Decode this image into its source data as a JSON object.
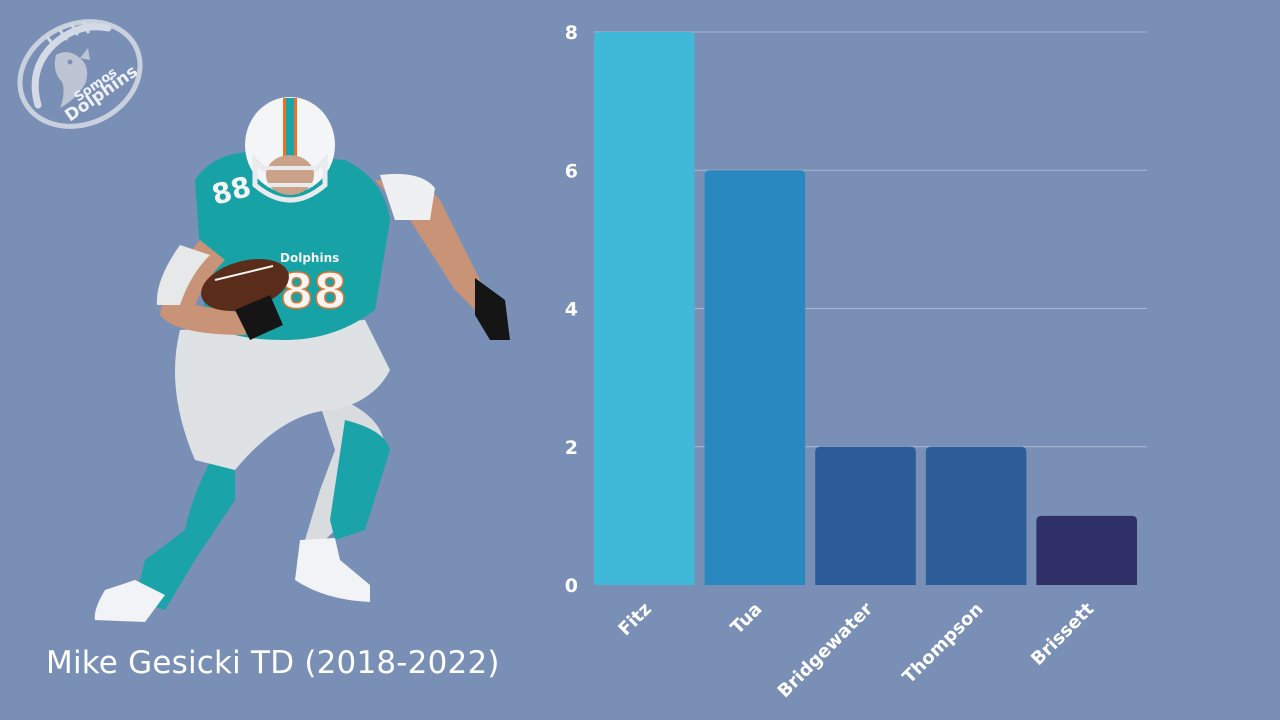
{
  "logo": {
    "text_line1": "Somos",
    "text_line2": "Dolphins",
    "icon": "dolphin-football-logo"
  },
  "player": {
    "icon": "football-player-image",
    "jersey_number": "88",
    "jersey_text": "Dolphins"
  },
  "caption": {
    "text": "Mike Gesicki TD (2018-2022)"
  },
  "colors": {
    "background": "#7a8fb5",
    "gridline": "#a9b8d3",
    "bar_colors": [
      "#40b8d8",
      "#2a88c0",
      "#2b5b98",
      "#2d5e9a",
      "#303068"
    ]
  },
  "chart_data": {
    "type": "bar",
    "categories": [
      "Fitz",
      "Tua",
      "Bridgewater",
      "Thompson",
      "Brissett"
    ],
    "values": [
      8,
      6,
      2,
      2,
      1
    ],
    "title": "",
    "xlabel": "",
    "ylabel": "",
    "ylim": [
      0,
      8
    ],
    "yticks": [
      0,
      2,
      4,
      6,
      8
    ],
    "grid": true,
    "legend": "none"
  }
}
